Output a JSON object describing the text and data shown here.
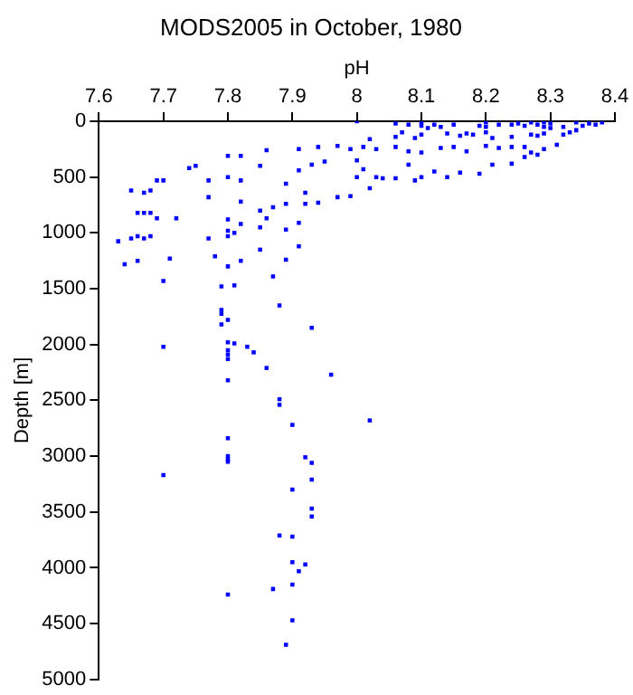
{
  "chart_data": {
    "type": "scatter",
    "title": "MODS2005 in October, 1980",
    "xlabel": "pH",
    "ylabel": "Depth [m]",
    "color": "#0000ff",
    "marker": "square",
    "grid": false,
    "legend": false,
    "xlim": [
      7.6,
      8.4
    ],
    "xticks": [
      7.6,
      7.7,
      7.8,
      7.9,
      8,
      8.1,
      8.2,
      8.3,
      8.4
    ],
    "ylim": [
      5000,
      0
    ],
    "yticks": [
      0,
      500,
      1000,
      1500,
      2000,
      2500,
      3000,
      3500,
      4000,
      4500,
      5000
    ],
    "x": [
      8.0,
      8.06,
      8.08,
      8.1,
      8.1,
      8.11,
      8.12,
      8.13,
      8.15,
      8.19,
      8.2,
      8.2,
      8.22,
      8.24,
      8.25,
      8.26,
      8.27,
      8.28,
      8.29,
      8.29,
      8.3,
      8.3,
      8.32,
      8.34,
      8.35,
      8.36,
      8.37,
      8.38,
      8.02,
      8.06,
      8.07,
      8.09,
      8.1,
      8.14,
      8.16,
      8.17,
      8.18,
      8.2,
      8.21,
      8.24,
      8.27,
      8.28,
      8.29,
      8.32,
      8.33,
      8.34,
      7.86,
      7.91,
      7.94,
      7.97,
      7.99,
      8.01,
      8.03,
      8.06,
      8.08,
      8.1,
      8.13,
      8.15,
      8.17,
      8.2,
      8.22,
      8.24,
      8.26,
      8.27,
      8.29,
      8.31,
      7.8,
      7.82,
      7.74,
      7.75,
      7.85,
      7.93,
      7.91,
      7.95,
      8.0,
      8.0,
      7.69,
      7.7,
      7.77,
      7.8,
      7.82,
      7.89,
      8.01,
      8.03,
      8.04,
      8.06,
      8.08,
      8.09,
      8.1,
      8.12,
      8.14,
      8.16,
      8.19,
      8.21,
      8.24,
      8.26,
      8.28,
      7.65,
      7.67,
      7.68,
      7.77,
      7.82,
      7.85,
      7.87,
      7.89,
      7.92,
      7.94,
      7.97,
      7.99,
      8.02,
      7.92,
      7.66,
      7.67,
      7.68,
      7.69,
      7.72,
      7.86,
      7.85,
      7.89,
      7.91,
      7.8,
      7.81,
      7.82,
      7.66,
      7.77,
      7.8,
      7.8,
      7.63,
      7.65,
      7.67,
      7.68,
      7.64,
      7.66,
      7.71,
      7.78,
      7.8,
      7.82,
      7.85,
      7.89,
      7.91,
      7.7,
      7.79,
      7.81,
      7.87,
      7.88,
      7.79,
      7.79,
      7.8,
      7.79,
      7.93,
      7.7,
      7.8,
      7.81,
      7.83,
      7.84,
      7.8,
      7.8,
      7.8,
      7.86,
      7.96,
      7.8,
      7.88,
      7.88,
      7.9,
      8.02,
      7.8,
      7.8,
      7.8,
      7.8,
      7.92,
      7.93,
      7.7,
      7.93,
      7.9,
      7.93,
      7.93,
      7.88,
      7.9,
      7.9,
      7.92,
      7.91,
      7.9,
      7.87,
      7.8,
      7.9,
      7.89
    ],
    "values": [
      0,
      20,
      30,
      10,
      40,
      60,
      30,
      50,
      30,
      40,
      10,
      50,
      30,
      30,
      20,
      40,
      10,
      30,
      10,
      50,
      20,
      60,
      50,
      10,
      40,
      20,
      30,
      10,
      160,
      140,
      100,
      150,
      120,
      110,
      130,
      110,
      120,
      100,
      150,
      140,
      120,
      130,
      110,
      120,
      100,
      80,
      260,
      250,
      230,
      220,
      250,
      230,
      250,
      230,
      270,
      280,
      240,
      230,
      270,
      220,
      240,
      230,
      230,
      280,
      250,
      210,
      310,
      310,
      420,
      400,
      400,
      390,
      440,
      360,
      350,
      500,
      530,
      530,
      530,
      500,
      530,
      560,
      430,
      500,
      510,
      510,
      390,
      530,
      500,
      450,
      500,
      460,
      470,
      390,
      380,
      320,
      300,
      620,
      640,
      620,
      680,
      720,
      800,
      770,
      740,
      740,
      730,
      680,
      670,
      600,
      640,
      820,
      820,
      820,
      870,
      870,
      870,
      950,
      970,
      910,
      880,
      1000,
      920,
      1030,
      1050,
      1030,
      980,
      1075,
      1050,
      1050,
      1030,
      1280,
      1250,
      1230,
      1210,
      1300,
      1250,
      1150,
      1240,
      1120,
      1430,
      1480,
      1470,
      1390,
      1650,
      1690,
      1725,
      1780,
      1820,
      1850,
      2020,
      1980,
      1990,
      2020,
      2070,
      2050,
      2090,
      2130,
      2210,
      2270,
      2320,
      2490,
      2540,
      2720,
      2680,
      2840,
      3000,
      3030,
      3050,
      3010,
      3060,
      3170,
      3210,
      3300,
      3470,
      3540,
      3710,
      3720,
      3950,
      3970,
      4030,
      4150,
      4190,
      4240,
      4470,
      4690
    ]
  }
}
